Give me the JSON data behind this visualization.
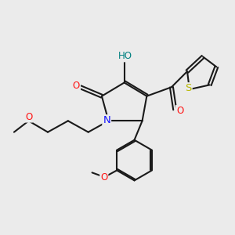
{
  "background_color": "#ebebeb",
  "bond_color": "#1a1a1a",
  "bond_width": 1.5,
  "atom_colors": {
    "N": "#1414ff",
    "O": "#ff1414",
    "S": "#b8b800",
    "H": "#008080",
    "C": "#1a1a1a"
  },
  "font_size": 8.5,
  "fig_size": [
    3.0,
    3.0
  ],
  "dpi": 100
}
